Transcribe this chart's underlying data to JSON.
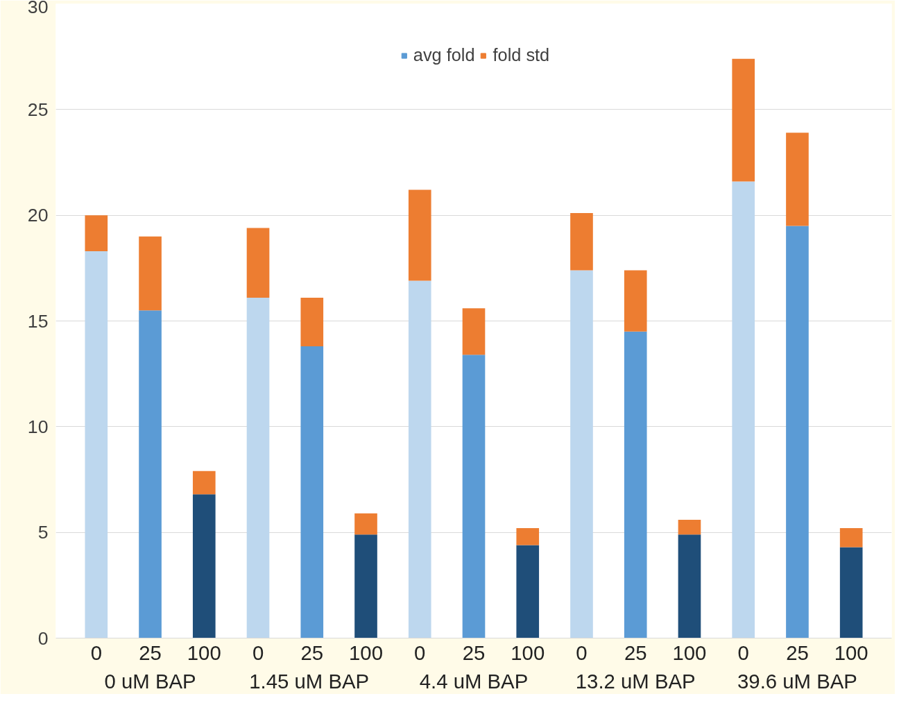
{
  "chart_data": {
    "type": "bar",
    "stacked": true,
    "categories": [
      "0",
      "25",
      "100",
      "0",
      "25",
      "100",
      "0",
      "25",
      "100",
      "0",
      "25",
      "100",
      "0",
      "25",
      "100"
    ],
    "series": [
      {
        "name": "avg fold",
        "color": "#5b9bd5",
        "colors": [
          "#bdd7ee",
          "#5b9bd5",
          "#1f4e79",
          "#bdd7ee",
          "#5b9bd5",
          "#1f4e79",
          "#bdd7ee",
          "#5b9bd5",
          "#1f4e79",
          "#bdd7ee",
          "#5b9bd5",
          "#1f4e79",
          "#bdd7ee",
          "#5b9bd5",
          "#1f4e79"
        ],
        "values": [
          18.3,
          15.5,
          6.8,
          16.1,
          13.8,
          4.9,
          16.9,
          13.4,
          4.4,
          17.4,
          14.5,
          4.9,
          21.6,
          19.5,
          4.3
        ]
      },
      {
        "name": "fold std",
        "color": "#ed7d31",
        "values": [
          1.7,
          3.5,
          1.1,
          3.3,
          2.3,
          1.0,
          4.3,
          2.2,
          0.8,
          2.7,
          2.9,
          0.7,
          5.8,
          4.4,
          0.9
        ]
      }
    ],
    "annotations": [
      "0 uM BAP",
      "1.45  uM BAP",
      "4.4 uM BAP",
      "13.2 uM BAP",
      "39.6 uM BAP"
    ],
    "ylim": [
      0,
      30
    ],
    "yticks": [
      0,
      5,
      10,
      15,
      20,
      25,
      30
    ],
    "grid": "y",
    "legend": "top"
  }
}
